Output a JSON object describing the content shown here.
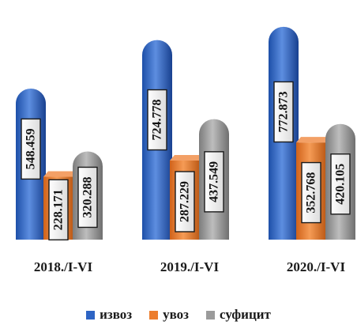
{
  "chart_data": {
    "type": "bar",
    "categories": [
      "2018./I-VI",
      "2019./I-VI",
      "2020./I-VI"
    ],
    "series": [
      {
        "name": "извоз",
        "color": "#2e64c4",
        "values": [
          548459,
          724778,
          772873
        ],
        "labels": [
          "548.459",
          "724.778",
          "772.873"
        ]
      },
      {
        "name": "увоз",
        "color": "#ec7d2e",
        "values": [
          228171,
          287229,
          352768
        ],
        "labels": [
          "228.171",
          "287.229",
          "352.768"
        ]
      },
      {
        "name": "суфицит",
        "color": "#9b9b9b",
        "values": [
          320288,
          437549,
          420105
        ],
        "labels": [
          "320.288",
          "437.549",
          "420.105"
        ]
      }
    ],
    "ylim": [
      0,
      870000
    ],
    "grid": false,
    "legend_position": "bottom"
  }
}
